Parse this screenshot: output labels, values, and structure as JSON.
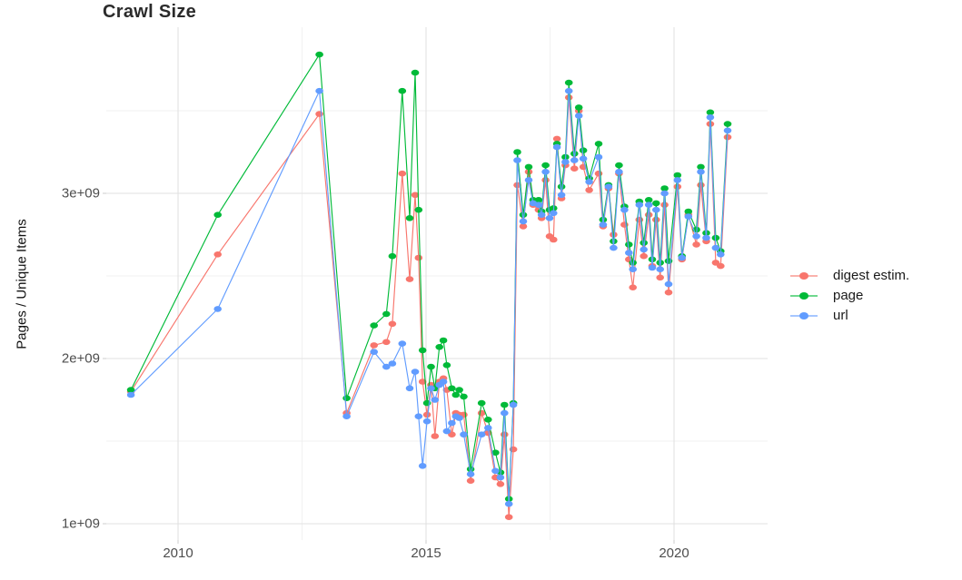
{
  "chart_data": {
    "type": "line",
    "title": "Crawl Size",
    "xlabel": "",
    "ylabel": "Pages / Unique Items",
    "units": "count (1.0 = 1e+09)",
    "legend_position": "right",
    "grid": true,
    "axes": {
      "x_range": [
        2008.55,
        2021.9
      ],
      "y_range": [
        0.89,
        4.01
      ],
      "x_major_ticks": [
        2010,
        2015,
        2020
      ],
      "x_major_labels": [
        "2010",
        "2015",
        "2020"
      ],
      "x_minor_ticks": [
        2012.5,
        2017.5
      ],
      "y_major_ticks": [
        1,
        2,
        3
      ],
      "y_major_labels": [
        "1e+09",
        "2e+09",
        "3e+09"
      ],
      "y_minor_ticks": [
        1.5,
        2.5,
        3.5
      ]
    },
    "series": [
      {
        "id": "digest",
        "label": "digest estim.",
        "color": "#F8766D"
      },
      {
        "id": "page",
        "label": "page",
        "color": "#00BA38"
      },
      {
        "id": "url",
        "label": "url",
        "color": "#619CFF"
      }
    ],
    "points_columns": [
      "year",
      "digest",
      "page",
      "url"
    ],
    "points": [
      [
        2009.05,
        1.8,
        1.81,
        1.78
      ],
      [
        2010.8,
        2.63,
        2.87,
        2.3
      ],
      [
        2012.85,
        3.48,
        3.84,
        3.62
      ],
      [
        2013.4,
        1.67,
        1.76,
        1.65
      ],
      [
        2013.95,
        2.08,
        2.2,
        2.04
      ],
      [
        2014.2,
        2.1,
        2.27,
        1.95
      ],
      [
        2014.32,
        2.21,
        2.62,
        1.97
      ],
      [
        2014.52,
        3.12,
        3.62,
        2.09
      ],
      [
        2014.67,
        2.48,
        2.85,
        1.82
      ],
      [
        2014.78,
        2.99,
        3.73,
        1.92
      ],
      [
        2014.85,
        2.61,
        2.9,
        1.65
      ],
      [
        2014.93,
        1.86,
        2.05,
        1.35
      ],
      [
        2015.02,
        1.66,
        1.73,
        1.62
      ],
      [
        2015.1,
        1.84,
        1.95,
        1.82
      ],
      [
        2015.18,
        1.53,
        1.82,
        1.75
      ],
      [
        2015.27,
        1.86,
        2.07,
        1.84
      ],
      [
        2015.35,
        1.88,
        2.11,
        1.86
      ],
      [
        2015.42,
        1.81,
        1.96,
        1.56
      ],
      [
        2015.52,
        1.54,
        1.82,
        1.61
      ],
      [
        2015.6,
        1.67,
        1.78,
        1.65
      ],
      [
        2015.67,
        1.66,
        1.81,
        1.64
      ],
      [
        2015.76,
        1.66,
        1.77,
        1.54
      ],
      [
        2015.9,
        1.26,
        1.33,
        1.3
      ],
      [
        2016.12,
        1.67,
        1.73,
        1.54
      ],
      [
        2016.25,
        1.55,
        1.63,
        1.58
      ],
      [
        2016.4,
        1.28,
        1.43,
        1.32
      ],
      [
        2016.5,
        1.24,
        1.31,
        1.28
      ],
      [
        2016.58,
        1.54,
        1.72,
        1.67
      ],
      [
        2016.67,
        1.04,
        1.15,
        1.12
      ],
      [
        2016.76,
        1.45,
        1.73,
        1.72
      ],
      [
        2016.84,
        3.05,
        3.25,
        3.2
      ],
      [
        2016.96,
        2.8,
        2.87,
        2.83
      ],
      [
        2017.07,
        3.13,
        3.16,
        3.08
      ],
      [
        2017.16,
        2.93,
        2.96,
        2.94
      ],
      [
        2017.27,
        2.9,
        2.96,
        2.93
      ],
      [
        2017.33,
        2.85,
        2.89,
        2.87
      ],
      [
        2017.41,
        3.08,
        3.17,
        3.13
      ],
      [
        2017.49,
        2.74,
        2.9,
        2.85
      ],
      [
        2017.57,
        2.72,
        2.91,
        2.88
      ],
      [
        2017.64,
        3.33,
        3.3,
        3.28
      ],
      [
        2017.73,
        2.97,
        3.04,
        2.99
      ],
      [
        2017.81,
        3.17,
        3.22,
        3.19
      ],
      [
        2017.88,
        3.58,
        3.67,
        3.62
      ],
      [
        2017.99,
        3.15,
        3.24,
        3.2
      ],
      [
        2018.08,
        3.5,
        3.52,
        3.47
      ],
      [
        2018.17,
        3.16,
        3.26,
        3.21
      ],
      [
        2018.29,
        3.02,
        3.09,
        3.07
      ],
      [
        2018.48,
        3.12,
        3.3,
        3.22
      ],
      [
        2018.57,
        2.8,
        2.84,
        2.81
      ],
      [
        2018.68,
        3.03,
        3.05,
        3.04
      ],
      [
        2018.78,
        2.75,
        2.71,
        2.67
      ],
      [
        2018.89,
        3.12,
        3.17,
        3.13
      ],
      [
        2019.0,
        2.81,
        2.92,
        2.9
      ],
      [
        2019.09,
        2.6,
        2.69,
        2.64
      ],
      [
        2019.17,
        2.43,
        2.58,
        2.54
      ],
      [
        2019.3,
        2.84,
        2.95,
        2.93
      ],
      [
        2019.39,
        2.62,
        2.7,
        2.66
      ],
      [
        2019.49,
        2.87,
        2.96,
        2.93
      ],
      [
        2019.56,
        2.56,
        2.6,
        2.55
      ],
      [
        2019.64,
        2.84,
        2.94,
        2.9
      ],
      [
        2019.72,
        2.49,
        2.58,
        2.54
      ],
      [
        2019.81,
        2.93,
        3.03,
        3.0
      ],
      [
        2019.89,
        2.4,
        2.59,
        2.45
      ],
      [
        2020.07,
        3.04,
        3.11,
        3.08
      ],
      [
        2020.16,
        2.6,
        2.62,
        2.61
      ],
      [
        2020.29,
        2.87,
        2.89,
        2.86
      ],
      [
        2020.45,
        2.69,
        2.78,
        2.74
      ],
      [
        2020.54,
        3.05,
        3.16,
        3.13
      ],
      [
        2020.65,
        2.71,
        2.76,
        2.73
      ],
      [
        2020.73,
        3.42,
        3.49,
        3.46
      ],
      [
        2020.84,
        2.58,
        2.73,
        2.67
      ],
      [
        2020.94,
        2.56,
        2.65,
        2.63
      ],
      [
        2021.08,
        3.34,
        3.42,
        3.38
      ]
    ],
    "style": {
      "grid_major_color": "#E2E2E2",
      "grid_minor_color": "#F0F0F0",
      "background": "#FFFFFF"
    }
  }
}
